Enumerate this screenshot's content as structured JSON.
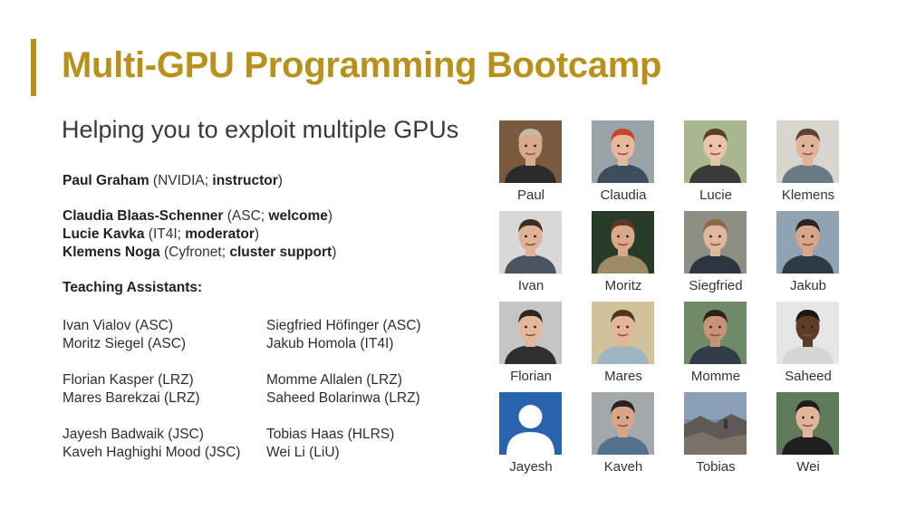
{
  "colors": {
    "accent": "#b8901c"
  },
  "title": "Multi-GPU Programming Bootcamp",
  "subtitle": "Helping you to exploit multiple GPUs",
  "staff": [
    {
      "name": "Paul Graham",
      "open": " (",
      "affiliation": "NVIDIA",
      "sep": "; ",
      "role": "instructor",
      "close": ")"
    },
    {
      "name": "Claudia Blaas-Schenner",
      "open": " (",
      "affiliation": "ASC",
      "sep": "; ",
      "role": "welcome",
      "close": ")"
    },
    {
      "name": "Lucie Kavka",
      "open": " (",
      "affiliation": "IT4I",
      "sep": "; ",
      "role": "moderator",
      "close": ")"
    },
    {
      "name": "Klemens Noga",
      "open": " (",
      "affiliation": "Cyfronet",
      "sep": "; ",
      "role": "cluster support",
      "close": ")"
    }
  ],
  "ta_heading": "Teaching Assistants:",
  "teaching_assistants": [
    [
      "Ivan Vialov (ASC)",
      "Siegfried Höfinger (ASC)"
    ],
    [
      "Moritz Siegel (ASC)",
      "Jakub Homola (IT4I)"
    ],
    [
      "Florian Kasper (LRZ)",
      "Momme Allalen (LRZ)"
    ],
    [
      "Mares Barekzai (LRZ)",
      "Saheed Bolarinwa (LRZ)"
    ],
    [
      "Jayesh Badwaik (JSC)",
      "Tobias Haas (HLRS)"
    ],
    [
      "Kaveh Haghighi Mood (JSC)",
      "Wei Li (LiU)"
    ]
  ],
  "photos": [
    {
      "label": "Paul",
      "bg": "#7a5a3e",
      "skin": "#d8a98a",
      "hair": "#c9b8a8",
      "shirt": "#2b2b2b"
    },
    {
      "label": "Claudia",
      "bg": "#9aa4a8",
      "skin": "#e6b99d",
      "hair": "#c4452c",
      "shirt": "#3c4d5e"
    },
    {
      "label": "Lucie",
      "bg": "#a9b78e",
      "skin": "#eac4aa",
      "hair": "#5a3d28",
      "shirt": "#3b3b3b"
    },
    {
      "label": "Klemens",
      "bg": "#d9d6cf",
      "skin": "#e1b49a",
      "hair": "#5b4430",
      "shirt": "#6b7b86"
    },
    {
      "label": "Ivan",
      "bg": "#d8d8d8",
      "skin": "#e0b398",
      "hair": "#3c2e22",
      "shirt": "#4a5560"
    },
    {
      "label": "Moritz",
      "bg": "#263b28",
      "skin": "#d9a98a",
      "hair": "#5e3a22",
      "shirt": "#9d8b65"
    },
    {
      "label": "Siegfried",
      "bg": "#8d8f84",
      "skin": "#e2b79f",
      "hair": "#8a6a45",
      "shirt": "#2d3540"
    },
    {
      "label": "Jakub",
      "bg": "#8fa3b3",
      "skin": "#d7a68a",
      "hair": "#2b2420",
      "shirt": "#2c3a44"
    },
    {
      "label": "Florian",
      "bg": "#c5c5c5",
      "skin": "#e3b79c",
      "hair": "#2e2620",
      "shirt": "#2f2f2f"
    },
    {
      "label": "Mares",
      "bg": "#d2c29a",
      "skin": "#e4b596",
      "hair": "#4b3626",
      "shirt": "#9eb6c4"
    },
    {
      "label": "Momme",
      "bg": "#6f8a68",
      "skin": "#c89478",
      "hair": "#2c211b",
      "shirt": "#2e3d48"
    },
    {
      "label": "Saheed",
      "bg": "#e6e6e6",
      "skin": "#5d3b28",
      "hair": "#1e1410",
      "shirt": "#d6d6d6"
    },
    {
      "label": "Jayesh",
      "bg": "#2a63ad",
      "skin": "#ffffff",
      "hair": "#ffffff",
      "shirt": "#ffffff",
      "placeholder": true
    },
    {
      "label": "Kaveh",
      "bg": "#a3a8aa",
      "skin": "#d7a689",
      "hair": "#2a2220",
      "shirt": "#55718e"
    },
    {
      "label": "Tobias",
      "bg": "#7a8fa6",
      "skin": "#a59a8e",
      "hair": "#4c4640",
      "shirt": "#6c6258",
      "landscape": true
    },
    {
      "label": "Wei",
      "bg": "#5f7a5a",
      "skin": "#e1b597",
      "hair": "#1f1a17",
      "shirt": "#1e1e1e"
    }
  ]
}
